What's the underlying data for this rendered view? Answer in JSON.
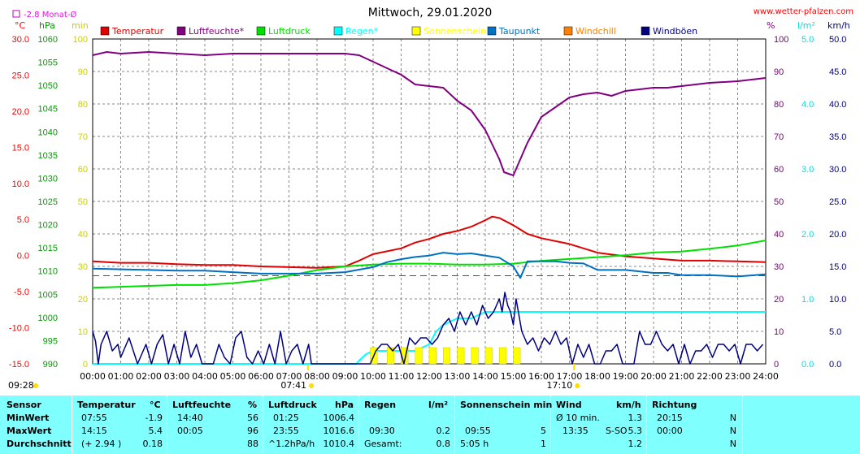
{
  "header": {
    "title": "Mittwoch, 29.01.2020",
    "site": "www.wetter-pfalzen.com",
    "monat_label": "-2.8 Monat-Ø"
  },
  "legend": [
    {
      "name": "Temperatur",
      "color": "#e00000"
    },
    {
      "name": "Luftfeuchte*",
      "color": "#800080"
    },
    {
      "name": "Luftdruck",
      "color": "#00e000"
    },
    {
      "name": "Regen*",
      "color": "#00ffff"
    },
    {
      "name": "Sonnenschein",
      "color": "#ffff00"
    },
    {
      "name": "Taupunkt",
      "color": "#0070c0"
    },
    {
      "name": "Windchill",
      "color": "#ff8000"
    },
    {
      "name": "Windböen",
      "color": "#000080"
    }
  ],
  "chart_data": {
    "type": "line",
    "xlabel": "",
    "x_ticks": [
      "00:00",
      "01:00",
      "02:00",
      "03:00",
      "04:00",
      "05:00",
      "06:00",
      "07:00",
      "08:00",
      "09:00",
      "10:00",
      "11:00",
      "12:00",
      "13:00",
      "14:00",
      "15:00",
      "16:00",
      "17:00",
      "18:00",
      "19:00",
      "20:00",
      "21:00",
      "22:00",
      "23:00",
      "24:00"
    ],
    "sunrise": "07:41",
    "sunset": "17:10",
    "day_start_label": "09:28",
    "grid": true,
    "axes": {
      "temp": {
        "unit": "°C",
        "range": [
          -15,
          30
        ],
        "ticks": [
          "30.0",
          "25.0",
          "20.0",
          "15.0",
          "10.0",
          "5.0",
          "0.0",
          "-5.0",
          "-10.0",
          "-15.0"
        ]
      },
      "pressure": {
        "unit": "hPa",
        "range": [
          990,
          1060
        ],
        "ticks": [
          "1060",
          "1055",
          "1050",
          "1045",
          "1040",
          "1035",
          "1030",
          "1025",
          "1020",
          "1015",
          "1010",
          "1005",
          "1000",
          "995",
          "990"
        ]
      },
      "sun": {
        "unit": "min",
        "range": [
          0,
          100
        ],
        "ticks": [
          "100",
          "90",
          "80",
          "70",
          "60",
          "50",
          "40",
          "30",
          "20",
          "10",
          "0"
        ]
      },
      "humidity": {
        "unit": "%",
        "range": [
          0,
          100
        ],
        "ticks": [
          "100",
          "90",
          "80",
          "70",
          "60",
          "50",
          "40",
          "30",
          "20",
          "10",
          "0"
        ]
      },
      "rain": {
        "unit": "l/m²",
        "range": [
          0,
          5
        ],
        "ticks": [
          "5.0",
          "4.0",
          "3.0",
          "2.0",
          "1.0",
          "0.0"
        ]
      },
      "wind": {
        "unit": "km/h",
        "range": [
          0,
          50
        ],
        "ticks": [
          "50.0",
          "45.0",
          "40.0",
          "35.0",
          "30.0",
          "25.0",
          "20.0",
          "15.0",
          "10.0",
          "5.0",
          "0.0"
        ]
      }
    },
    "monthly_avg_temp": -2.8,
    "series": [
      {
        "name": "Temperatur",
        "axis": "temp",
        "color": "#e00000",
        "x": [
          0,
          1,
          2,
          3,
          4,
          5,
          6,
          7,
          8,
          9,
          9.5,
          10,
          11,
          11.5,
          12,
          12.5,
          13,
          13.5,
          14,
          14.25,
          14.5,
          15,
          15.5,
          16,
          17,
          18,
          19,
          20,
          21,
          22,
          23,
          24
        ],
        "y": [
          -0.8,
          -1.0,
          -1.0,
          -1.2,
          -1.3,
          -1.3,
          -1.5,
          -1.6,
          -1.7,
          -1.5,
          -0.7,
          0.2,
          1.0,
          1.8,
          2.3,
          3.0,
          3.4,
          4.0,
          4.9,
          5.4,
          5.2,
          4.2,
          3.0,
          2.4,
          1.6,
          0.4,
          -0.1,
          -0.4,
          -0.7,
          -0.7,
          -0.8,
          -0.9
        ]
      },
      {
        "name": "Luftfeuchte*",
        "axis": "humidity",
        "color": "#800080",
        "x": [
          0,
          0.5,
          1,
          2,
          3,
          4,
          5,
          6,
          7,
          8,
          9,
          9.5,
          10,
          11,
          11.5,
          12,
          12.5,
          13,
          13.5,
          14,
          14.5,
          14.67,
          15,
          15.5,
          16,
          16.5,
          17,
          17.5,
          18,
          18.5,
          19,
          20,
          20.5,
          21,
          22,
          23,
          24
        ],
        "y": [
          95,
          96,
          95.5,
          96,
          95.5,
          95,
          95.5,
          95.5,
          95.5,
          95.5,
          95.5,
          95,
          93,
          89,
          86,
          85.5,
          85,
          81,
          78,
          72,
          63,
          59,
          58,
          68,
          76,
          79,
          82,
          83,
          83.5,
          82.5,
          84,
          85,
          85,
          85.5,
          86.5,
          87,
          88
        ]
      },
      {
        "name": "Luftdruck",
        "axis": "pressure",
        "color": "#00e000",
        "x": [
          0,
          1,
          2,
          3,
          4,
          5,
          6,
          7,
          8,
          9,
          10,
          11,
          12,
          13,
          14,
          15,
          16,
          17,
          18,
          19,
          20,
          21,
          22,
          23,
          24
        ],
        "y": [
          1006.4,
          1006.6,
          1006.8,
          1007.0,
          1007.0,
          1007.4,
          1008.0,
          1009.0,
          1010.2,
          1011.0,
          1011.4,
          1011.6,
          1011.6,
          1011.4,
          1011.4,
          1011.6,
          1012.2,
          1012.6,
          1013.0,
          1013.4,
          1014.0,
          1014.2,
          1014.8,
          1015.5,
          1016.6
        ]
      },
      {
        "name": "Taupunkt",
        "axis": "temp",
        "color": "#0070c0",
        "x": [
          0,
          1,
          2,
          3,
          4,
          5,
          6,
          7,
          8,
          9,
          10,
          10.5,
          11,
          11.5,
          12,
          12.5,
          13,
          13.5,
          14,
          14.5,
          15,
          15.25,
          15.5,
          16,
          16.5,
          17,
          17.5,
          18,
          19,
          20,
          20.5,
          21,
          22,
          23,
          24
        ],
        "y": [
          -1.8,
          -1.9,
          -2.0,
          -2.1,
          -2.1,
          -2.3,
          -2.5,
          -2.5,
          -2.5,
          -2.3,
          -1.6,
          -0.9,
          -0.5,
          -0.2,
          0.0,
          0.4,
          0.2,
          0.3,
          0.0,
          -0.3,
          -1.5,
          -3.1,
          -0.8,
          -0.8,
          -0.8,
          -1.0,
          -1.1,
          -2.0,
          -2.0,
          -2.4,
          -2.4,
          -2.7,
          -2.7,
          -2.9,
          -2.6
        ]
      },
      {
        "name": "Regen*",
        "axis": "rain",
        "color": "#00ffff",
        "x": [
          0,
          9.4,
          9.5,
          9.75,
          10,
          10.5,
          11,
          11.5,
          12,
          12.25,
          12.5,
          13,
          13.5,
          14,
          15,
          16,
          17,
          18,
          19,
          20,
          21,
          22,
          23,
          24
        ],
        "y": [
          0,
          0,
          0.05,
          0.15,
          0.2,
          0.2,
          0.2,
          0.2,
          0.3,
          0.5,
          0.6,
          0.7,
          0.7,
          0.8,
          0.8,
          0.8,
          0.8,
          0.8,
          0.8,
          0.8,
          0.8,
          0.8,
          0.8,
          0.8
        ]
      },
      {
        "name": "Sonnenschein",
        "axis": "sun",
        "color": "#ffff00",
        "x": [
          9.9,
          10.5,
          11.0,
          11.5,
          12.0,
          12.5,
          13.0,
          13.5,
          14.0,
          14.5,
          15.0
        ],
        "y": [
          5,
          5,
          5,
          5,
          5,
          5,
          5,
          5,
          5,
          5,
          5
        ]
      },
      {
        "name": "Windböen",
        "axis": "wind",
        "color": "#000080",
        "x": [
          0,
          0.1,
          0.2,
          0.3,
          0.5,
          0.7,
          0.9,
          1.0,
          1.3,
          1.6,
          1.9,
          2.1,
          2.3,
          2.5,
          2.7,
          2.9,
          3.1,
          3.3,
          3.5,
          3.7,
          3.9,
          4.1,
          4.3,
          4.5,
          4.7,
          4.9,
          5.1,
          5.3,
          5.5,
          5.7,
          5.9,
          6.1,
          6.3,
          6.5,
          6.7,
          6.9,
          7.1,
          7.3,
          7.5,
          7.7,
          7.8,
          7.9,
          8.1,
          8.5,
          9.0,
          9.5,
          9.9,
          10.1,
          10.3,
          10.5,
          10.7,
          10.9,
          11.1,
          11.3,
          11.5,
          11.7,
          11.9,
          12.1,
          12.3,
          12.5,
          12.7,
          12.9,
          13.1,
          13.3,
          13.5,
          13.7,
          13.9,
          14.1,
          14.3,
          14.5,
          14.6,
          14.7,
          14.8,
          14.9,
          15.0,
          15.1,
          15.3,
          15.5,
          15.7,
          15.9,
          16.1,
          16.3,
          16.5,
          16.7,
          16.9,
          17.1,
          17.3,
          17.5,
          17.7,
          17.9,
          18.1,
          18.3,
          18.5,
          18.7,
          18.9,
          19.1,
          19.3,
          19.5,
          19.7,
          19.9,
          20.1,
          20.3,
          20.5,
          20.7,
          20.9,
          21.1,
          21.3,
          21.5,
          21.7,
          21.9,
          22.1,
          22.3,
          22.5,
          22.7,
          22.9,
          23.1,
          23.3,
          23.5,
          23.7,
          23.9
        ],
        "y": [
          5,
          3.5,
          0,
          3,
          5,
          2,
          3,
          1,
          4,
          0,
          3,
          0,
          3,
          4.5,
          0,
          3,
          0,
          5,
          1,
          3,
          0,
          0,
          0,
          3,
          1,
          0,
          4,
          5,
          1,
          0,
          2,
          0,
          3,
          0,
          5,
          0,
          2,
          3,
          0,
          3,
          0,
          0,
          0,
          0,
          0,
          0,
          0,
          2,
          3,
          3,
          2,
          3,
          0,
          4,
          3,
          4,
          4,
          3,
          4,
          6,
          7,
          5,
          8,
          6,
          8,
          6,
          9,
          7,
          8,
          10,
          8,
          11,
          9,
          8,
          6,
          10,
          5,
          3,
          4,
          2,
          4,
          3,
          5,
          3,
          4,
          0,
          3,
          1,
          3,
          0,
          0,
          2,
          2,
          3,
          0,
          0,
          0,
          5,
          3,
          3,
          5,
          3,
          2,
          3,
          0,
          3,
          0,
          2,
          2,
          3,
          1,
          3,
          3,
          2,
          3,
          0,
          3,
          3,
          2,
          3
        ]
      }
    ]
  },
  "table": {
    "headers": {
      "sensor": "Sensor",
      "temp": "Temperatur",
      "temp_unit": "°C",
      "hum": "Luftfeuchte",
      "hum_unit": "%",
      "press": "Luftdruck",
      "press_unit": "hPa",
      "rain": "Regen",
      "rain_unit": "l/m²",
      "sun": "Sonnenschein min",
      "wind": "Wind",
      "wind_unit": "km/h",
      "dir": "Richtung"
    },
    "rows": {
      "min": {
        "label": "MinWert",
        "temp_time": "07:55",
        "temp_val": "-1.9",
        "hum_time": "14:40",
        "hum_val": "56",
        "press_time": "01:25",
        "press_val": "1006.4",
        "rain_time": "",
        "rain_val": "",
        "sun_time": "",
        "sun_val": "",
        "wind_time": "Ø 10 min.",
        "wind_val": "1.3",
        "dir_time": "20:15",
        "dir_val": "N"
      },
      "max": {
        "label": "MaxWert",
        "temp_time": "14:15",
        "temp_val": "5.4",
        "hum_time": "00:05",
        "hum_val": "96",
        "press_time": "23:55",
        "press_val": "1016.6",
        "rain_time": "09:30",
        "rain_val": "0.2",
        "sun_time": "09:55",
        "sun_val": "5",
        "wind_time": "13:35",
        "wind_dir": "S-SO",
        "wind_val": "5.3",
        "dir_time": "00:00",
        "dir_val": "N"
      },
      "avg": {
        "label": "Durchschnitt",
        "temp_time": "(+ 2.94 )",
        "temp_val": "0.18",
        "hum_time": "",
        "hum_val": "88",
        "press_time": "^1.2hPa/h",
        "press_val": "1010.4",
        "rain_time": "Gesamt:",
        "rain_val": "0.8",
        "sun_time": "5:05 h",
        "sun_val": "1",
        "wind_time": "",
        "wind_val": "1.2",
        "dir_time": "",
        "dir_val": "N"
      }
    }
  }
}
